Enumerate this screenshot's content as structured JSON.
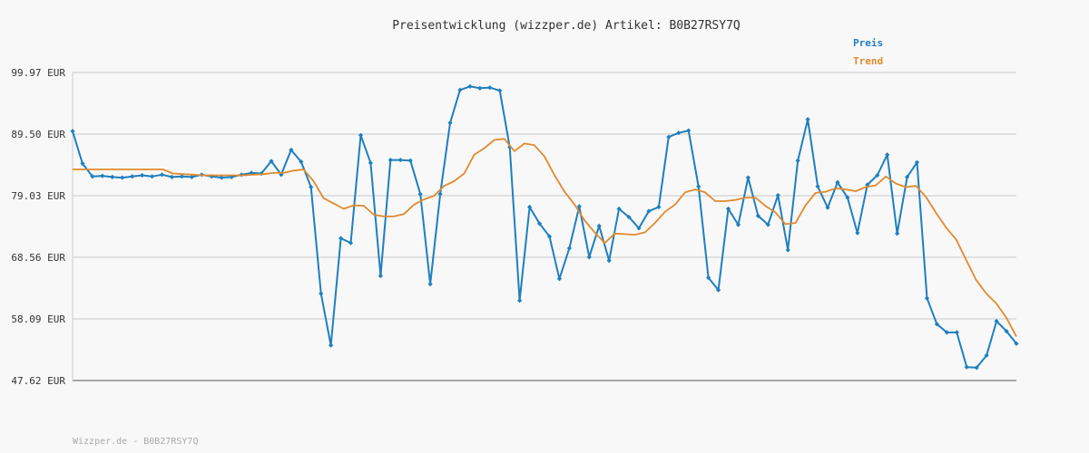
{
  "chart_data": {
    "type": "line",
    "title": "Preisentwicklung (wizzper.de) Artikel: B0B27RSY7Q",
    "footer": "Wizzper.de - B0B27RSY7Q",
    "y_tick_labels": [
      "99.97 EUR",
      "89.50 EUR",
      "79.03 EUR",
      "68.56 EUR",
      "58.09 EUR",
      "47.62 EUR"
    ],
    "y_ticks": [
      99.97,
      89.5,
      79.03,
      68.56,
      58.09,
      47.62
    ],
    "ylim": [
      47.62,
      99.97
    ],
    "grid": true,
    "legend_position": "top-right",
    "series": [
      {
        "name": "Preis",
        "color": "#1e7fbf",
        "marker": "diamond",
        "values": [
          90.0,
          84.5,
          82.3,
          82.4,
          82.2,
          82.1,
          82.3,
          82.5,
          82.3,
          82.6,
          82.2,
          82.3,
          82.2,
          82.6,
          82.3,
          82.1,
          82.2,
          82.6,
          82.9,
          82.8,
          84.9,
          82.6,
          86.8,
          84.8,
          80.5,
          62.4,
          53.6,
          71.8,
          71.0,
          89.3,
          84.6,
          65.4,
          85.1,
          85.1,
          85.0,
          79.3,
          64.0,
          79.3,
          91.4,
          97.0,
          97.6,
          97.3,
          97.4,
          96.9,
          87.3,
          61.2,
          77.1,
          74.3,
          72.1,
          64.9,
          70.1,
          77.2,
          68.6,
          73.9,
          68.0,
          76.8,
          75.4,
          73.5,
          76.4,
          77.1,
          89.0,
          89.7,
          90.1,
          80.6,
          65.1,
          63.0,
          76.8,
          74.1,
          82.1,
          75.6,
          74.1,
          79.1,
          69.8,
          85.0,
          92.0,
          80.6,
          77.0,
          81.3,
          78.7,
          72.7,
          80.9,
          82.5,
          86.0,
          72.6,
          82.2,
          84.7,
          61.6,
          57.2,
          55.8,
          55.8,
          49.9,
          49.8,
          51.9,
          57.7,
          56.0,
          53.9
        ]
      },
      {
        "name": "Trend",
        "color": "#e08a2e",
        "marker": "none",
        "values": [
          83.5,
          83.5,
          83.5,
          83.5,
          83.5,
          83.5,
          83.5,
          83.5,
          83.5,
          83.5,
          82.8,
          82.7,
          82.6,
          82.5,
          82.5,
          82.5,
          82.5,
          82.5,
          82.6,
          82.7,
          82.9,
          82.9,
          83.3,
          83.5,
          81.5,
          78.6,
          77.7,
          76.8,
          77.4,
          77.3,
          75.8,
          75.5,
          75.5,
          75.9,
          77.5,
          78.4,
          79.0,
          80.7,
          81.5,
          82.8,
          86.0,
          87.1,
          88.5,
          88.7,
          86.6,
          87.9,
          87.6,
          85.7,
          82.5,
          79.7,
          77.5,
          74.8,
          72.8,
          71.0,
          72.6,
          72.5,
          72.4,
          72.8,
          74.4,
          76.3,
          77.5,
          79.6,
          80.1,
          79.6,
          78.1,
          78.1,
          78.3,
          78.7,
          78.7,
          77.3,
          76.2,
          74.2,
          74.4,
          77.4,
          79.5,
          79.7,
          80.3,
          80.1,
          79.8,
          80.5,
          80.8,
          82.3,
          81.1,
          80.5,
          80.7,
          78.8,
          76.1,
          73.6,
          71.6,
          68.1,
          64.7,
          62.4,
          60.7,
          58.3,
          55.1
        ]
      }
    ]
  }
}
